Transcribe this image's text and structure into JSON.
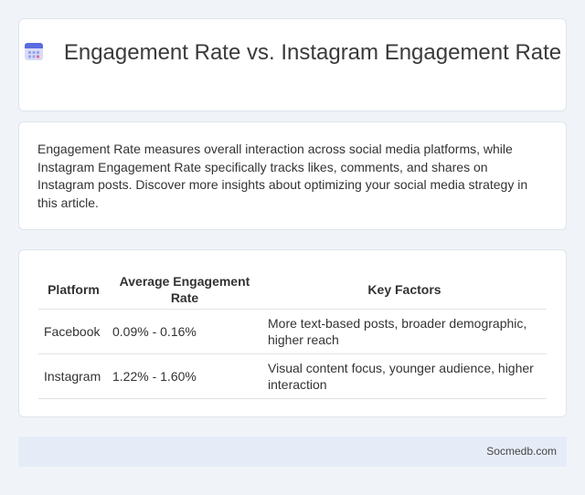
{
  "header": {
    "title": "Engagement Rate vs. Instagram Engagement Rate",
    "icon": "calendar-icon"
  },
  "intro": {
    "text": "Engagement Rate measures overall interaction across social media platforms, while Instagram Engagement Rate specifically tracks likes, comments, and shares on Instagram posts. Discover more insights about optimizing your social media strategy in this article."
  },
  "table": {
    "headers": [
      "Platform",
      "Average Engagement Rate",
      "Key Factors"
    ],
    "rows": [
      [
        "Facebook",
        "0.09% - 0.16%",
        "More text-based posts, broader demographic, higher reach"
      ],
      [
        "Instagram",
        "1.22% - 1.60%",
        "Visual content focus, younger audience, higher interaction"
      ]
    ]
  },
  "footer": {
    "site": "Socmedb.com"
  }
}
